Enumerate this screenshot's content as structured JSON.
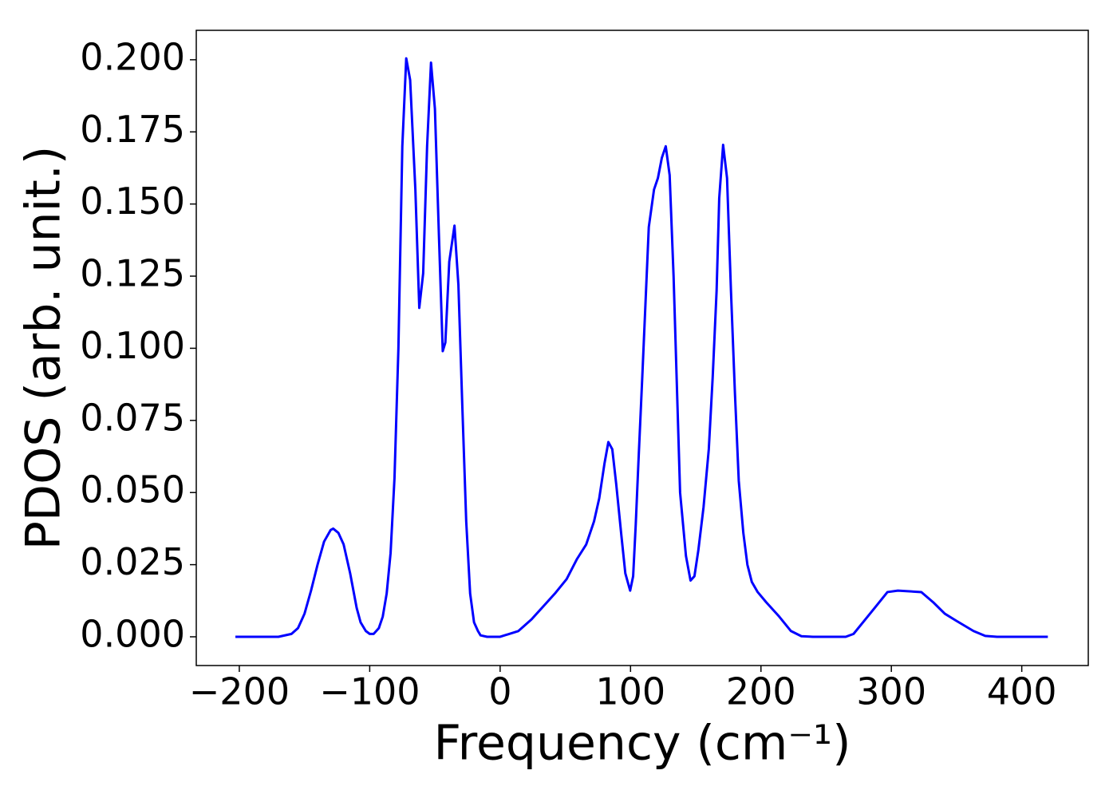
{
  "chart_data": {
    "type": "line",
    "xlabel": "Frequency (cm⁻¹)",
    "ylabel": "PDOS (arb. unit.)",
    "xlim": [
      -233,
      451
    ],
    "ylim": [
      -0.00996,
      0.2102
    ],
    "xticks": [
      {
        "value": -200,
        "label": "−200"
      },
      {
        "value": -100,
        "label": "−100"
      },
      0,
      100,
      200,
      300,
      400
    ],
    "yticks": [
      {
        "value": 0,
        "label": "0.000"
      },
      {
        "value": 0.025,
        "label": "0.025"
      },
      {
        "value": 0.05,
        "label": "0.050"
      },
      {
        "value": 0.075,
        "label": "0.075"
      },
      {
        "value": 0.1,
        "label": "0.100"
      },
      {
        "value": 0.125,
        "label": "0.125"
      },
      {
        "value": 0.15,
        "label": "0.150"
      },
      {
        "value": 0.175,
        "label": "0.175"
      },
      {
        "value": 0.2,
        "label": "0.200"
      }
    ],
    "x": [
      -203,
      -170,
      -160,
      -155,
      -150,
      -145,
      -140,
      -135,
      -130,
      -128,
      -124,
      -120,
      -115,
      -110,
      -107,
      -103,
      -100,
      -97,
      -93,
      -90,
      -87,
      -84,
      -81,
      -78,
      -75,
      -72,
      -69,
      -65,
      -62,
      -59,
      -56,
      -53,
      -50,
      -47,
      -44,
      -42,
      -39,
      -35,
      -32,
      -29,
      -26,
      -23,
      -20,
      -17,
      -15,
      -10,
      0,
      14,
      24,
      32,
      42,
      51,
      59,
      66,
      72,
      76,
      80,
      83,
      86,
      89,
      93,
      96,
      99.7,
      102,
      104,
      106,
      109,
      114,
      118,
      121,
      124,
      127,
      130,
      133,
      138,
      142.5,
      146,
      149,
      152,
      156,
      160,
      163,
      166,
      168,
      171,
      174,
      177,
      180,
      183,
      186.5,
      189.6,
      193,
      197.5,
      204,
      214,
      223,
      231,
      240,
      265,
      271,
      280,
      289,
      297,
      305,
      323,
      332,
      341,
      350,
      363,
      372,
      381,
      420
    ],
    "series": [
      {
        "color": "#0000ff",
        "values": [
          0,
          0,
          0.001,
          0.003,
          0.008,
          0.016,
          0.025,
          0.033,
          0.037,
          0.0375,
          0.036,
          0.032,
          0.022,
          0.01,
          0.005,
          0.002,
          0.001,
          0.001,
          0.003,
          0.007,
          0.015,
          0.029,
          0.055,
          0.1,
          0.17,
          0.2005,
          0.193,
          0.155,
          0.114,
          0.126,
          0.17,
          0.199,
          0.183,
          0.14,
          0.099,
          0.102,
          0.13,
          0.1425,
          0.122,
          0.08,
          0.04,
          0.015,
          0.005,
          0.002,
          0.0005,
          0,
          0,
          0.002,
          0.006,
          0.01,
          0.015,
          0.02,
          0.027,
          0.032,
          0.04,
          0.048,
          0.06,
          0.0675,
          0.065,
          0.053,
          0.035,
          0.022,
          0.016,
          0.021,
          0.039,
          0.06,
          0.09,
          0.142,
          0.155,
          0.159,
          0.166,
          0.17,
          0.16,
          0.125,
          0.05,
          0.028,
          0.0195,
          0.021,
          0.03,
          0.045,
          0.065,
          0.09,
          0.12,
          0.152,
          0.1705,
          0.159,
          0.12,
          0.085,
          0.054,
          0.036,
          0.025,
          0.019,
          0.0155,
          0.012,
          0.007,
          0.002,
          0.0002,
          0,
          0,
          0.001,
          0.006,
          0.011,
          0.0155,
          0.016,
          0.0155,
          0.012,
          0.008,
          0.0055,
          0.002,
          0.0003,
          0,
          0
        ]
      }
    ]
  }
}
